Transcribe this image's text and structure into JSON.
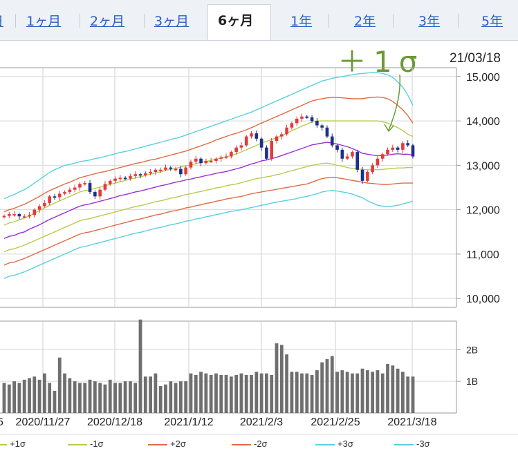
{
  "tabs": [
    {
      "label": "日",
      "active": false
    },
    {
      "label": "1ヶ月",
      "active": false
    },
    {
      "label": "2ヶ月",
      "active": false
    },
    {
      "label": "3ヶ月",
      "active": false
    },
    {
      "label": "6ヶ月",
      "active": true
    },
    {
      "label": "1年",
      "active": false
    },
    {
      "label": "2年",
      "active": false
    },
    {
      "label": "3年",
      "active": false
    },
    {
      "label": "5年",
      "active": false
    }
  ],
  "annotation": "＋1σ",
  "date_stamp": "21/03/18",
  "colors": {
    "up": "#e23b3b",
    "down": "#1d2f8a",
    "ma": "#9b2fd0",
    "sigma1": "#b6cc4e",
    "sigma2": "#e06b46",
    "sigma3": "#58cfe0",
    "volume": "#6f6f6f",
    "annotation": "#6a9a32"
  },
  "legend": [
    {
      "label": "+1σ",
      "color": "#b6cc4e"
    },
    {
      "label": "-1σ",
      "color": "#b6cc4e"
    },
    {
      "label": "+2σ",
      "color": "#e06b46"
    },
    {
      "label": "-2σ",
      "color": "#e06b46"
    },
    {
      "label": "+3σ",
      "color": "#58cfe0"
    },
    {
      "label": "-3σ",
      "color": "#58cfe0"
    }
  ],
  "chart_data": [
    {
      "type": "candlestick",
      "title": "",
      "y_ticks": [
        "15,000",
        "14,000",
        "13,000",
        "12,000",
        "11,000",
        "10,000"
      ],
      "ylim": [
        9800,
        15200
      ],
      "x_ticks": [
        "2020/11/27",
        "2020/12/18",
        "2021/1/12",
        "2021/2/3",
        "2021/2/25",
        "2021/3/18"
      ],
      "close": [
        11860,
        11900,
        11900,
        11850,
        11850,
        11880,
        12000,
        12080,
        12150,
        12300,
        12280,
        12360,
        12400,
        12450,
        12500,
        12580,
        12600,
        12400,
        12300,
        12450,
        12580,
        12650,
        12700,
        12720,
        12700,
        12760,
        12800,
        12780,
        12820,
        12850,
        12900,
        12900,
        12950,
        12920,
        12920,
        12800,
        12950,
        13080,
        13150,
        13050,
        13100,
        13100,
        13150,
        13180,
        13200,
        13300,
        13400,
        13450,
        13650,
        13720,
        13600,
        13400,
        13150,
        13550,
        13650,
        13700,
        13850,
        13950,
        14050,
        14100,
        14080,
        14000,
        13900,
        13850,
        13650,
        13450,
        13350,
        13150,
        13200,
        13300,
        12900,
        12650,
        12850,
        13000,
        13150,
        13250,
        13350,
        13400,
        13350,
        13500,
        13450,
        13200
      ],
      "sigma_bands": {
        "ma": [
          11350,
          11400,
          11420,
          11470,
          11500,
          11560,
          11610,
          11660,
          11720,
          11780,
          11830,
          11880,
          11930,
          11980,
          12030,
          12080,
          12110,
          12130,
          12160,
          12190,
          12220,
          12250,
          12280,
          12320,
          12340,
          12370,
          12400,
          12420,
          12450,
          12480,
          12510,
          12540,
          12560,
          12590,
          12620,
          12640,
          12670,
          12690,
          12720,
          12740,
          12770,
          12790,
          12820,
          12840,
          12860,
          12890,
          12920,
          12950,
          12990,
          13030,
          13060,
          13100,
          13120,
          13150,
          13180,
          13220,
          13260,
          13300,
          13340,
          13380,
          13420,
          13460,
          13480,
          13500,
          13520,
          13500,
          13480,
          13450,
          13420,
          13380,
          13330,
          13270,
          13250,
          13230,
          13220,
          13220,
          13230,
          13250,
          13260,
          13250,
          13250,
          13230
        ],
        "plus1": [
          11650,
          11700,
          11730,
          11770,
          11810,
          11860,
          11920,
          11980,
          12040,
          12100,
          12150,
          12200,
          12250,
          12300,
          12350,
          12400,
          12430,
          12450,
          12480,
          12510,
          12540,
          12570,
          12600,
          12630,
          12660,
          12690,
          12720,
          12740,
          12770,
          12800,
          12830,
          12850,
          12880,
          12910,
          12930,
          12960,
          12990,
          13010,
          13040,
          13060,
          13090,
          13110,
          13140,
          13160,
          13190,
          13220,
          13260,
          13300,
          13350,
          13400,
          13450,
          13500,
          13540,
          13580,
          13620,
          13670,
          13720,
          13780,
          13830,
          13880,
          13930,
          13980,
          14000,
          14000,
          14000,
          14000,
          14000,
          14000,
          14000,
          14000,
          14000,
          14000,
          14000,
          14000,
          14000,
          13980,
          13950,
          13900,
          13850,
          13780,
          13700,
          13650
        ],
        "minus1": [
          11050,
          11100,
          11120,
          11160,
          11200,
          11250,
          11300,
          11350,
          11400,
          11450,
          11500,
          11550,
          11600,
          11650,
          11700,
          11750,
          11780,
          11800,
          11830,
          11860,
          11890,
          11920,
          11950,
          11980,
          12010,
          12040,
          12070,
          12090,
          12120,
          12150,
          12180,
          12200,
          12230,
          12260,
          12280,
          12310,
          12340,
          12360,
          12390,
          12410,
          12440,
          12460,
          12490,
          12510,
          12540,
          12560,
          12580,
          12610,
          12640,
          12670,
          12700,
          12720,
          12740,
          12760,
          12790,
          12810,
          12850,
          12880,
          12910,
          12940,
          12970,
          13000,
          13020,
          13040,
          13050,
          13030,
          13000,
          12980,
          12950,
          12930,
          12920,
          12910,
          12900,
          12900,
          12900,
          12910,
          12920,
          12930,
          12940,
          12940,
          12950,
          12950
        ],
        "plus2": [
          11950,
          12000,
          12030,
          12080,
          12120,
          12180,
          12240,
          12300,
          12370,
          12430,
          12480,
          12530,
          12580,
          12620,
          12670,
          12720,
          12750,
          12780,
          12810,
          12840,
          12860,
          12890,
          12920,
          12950,
          12980,
          13010,
          13040,
          13060,
          13090,
          13120,
          13140,
          13170,
          13200,
          13230,
          13260,
          13290,
          13320,
          13360,
          13400,
          13440,
          13480,
          13520,
          13570,
          13610,
          13650,
          13690,
          13720,
          13760,
          13800,
          13850,
          13900,
          13950,
          14000,
          14050,
          14100,
          14150,
          14200,
          14250,
          14300,
          14350,
          14400,
          14450,
          14480,
          14500,
          14520,
          14530,
          14530,
          14520,
          14510,
          14500,
          14500,
          14500,
          14520,
          14530,
          14540,
          14530,
          14500,
          14440,
          14350,
          14250,
          14120,
          13950
        ],
        "minus2": [
          10750,
          10800,
          10820,
          10860,
          10900,
          10950,
          11000,
          11050,
          11100,
          11150,
          11200,
          11250,
          11300,
          11350,
          11400,
          11450,
          11480,
          11500,
          11530,
          11560,
          11590,
          11620,
          11650,
          11680,
          11710,
          11740,
          11770,
          11790,
          11820,
          11850,
          11880,
          11900,
          11930,
          11960,
          11980,
          12010,
          12040,
          12060,
          12090,
          12110,
          12140,
          12160,
          12190,
          12210,
          12240,
          12260,
          12280,
          12300,
          12330,
          12360,
          12380,
          12400,
          12420,
          12440,
          12460,
          12480,
          12500,
          12520,
          12540,
          12560,
          12580,
          12620,
          12660,
          12700,
          12720,
          12730,
          12720,
          12700,
          12680,
          12660,
          12640,
          12620,
          12600,
          12590,
          12580,
          12570,
          12570,
          12580,
          12590,
          12600,
          12600,
          12600
        ],
        "plus3": [
          12250,
          12300,
          12340,
          12400,
          12450,
          12520,
          12600,
          12680,
          12760,
          12840,
          12900,
          12950,
          13000,
          13020,
          13050,
          13080,
          13100,
          13120,
          13150,
          13170,
          13200,
          13230,
          13260,
          13290,
          13310,
          13340,
          13370,
          13400,
          13430,
          13460,
          13490,
          13520,
          13550,
          13580,
          13610,
          13640,
          13680,
          13720,
          13760,
          13800,
          13840,
          13880,
          13920,
          13960,
          14000,
          14040,
          14080,
          14120,
          14160,
          14200,
          14250,
          14300,
          14350,
          14400,
          14450,
          14500,
          14550,
          14600,
          14650,
          14700,
          14750,
          14800,
          14850,
          14900,
          14930,
          14960,
          14980,
          15000,
          15020,
          15040,
          15060,
          15070,
          15080,
          15090,
          15090,
          15070,
          15040,
          14980,
          14880,
          14760,
          14580,
          14350
        ],
        "minus3": [
          10450,
          10500,
          10520,
          10560,
          10600,
          10650,
          10700,
          10750,
          10800,
          10850,
          10900,
          10950,
          11000,
          11050,
          11100,
          11150,
          11170,
          11200,
          11230,
          11260,
          11290,
          11320,
          11350,
          11380,
          11410,
          11440,
          11470,
          11490,
          11520,
          11550,
          11580,
          11600,
          11630,
          11660,
          11680,
          11710,
          11740,
          11760,
          11790,
          11810,
          11840,
          11860,
          11890,
          11910,
          11940,
          11960,
          11980,
          12000,
          12020,
          12050,
          12070,
          12100,
          12120,
          12150,
          12170,
          12190,
          12210,
          12230,
          12250,
          12280,
          12300,
          12330,
          12360,
          12400,
          12420,
          12430,
          12420,
          12400,
          12380,
          12350,
          12310,
          12270,
          12200,
          12150,
          12100,
          12080,
          12070,
          12080,
          12100,
          12130,
          12160,
          12190
        ]
      }
    },
    {
      "type": "bar",
      "title": "",
      "y_ticks": [
        "2B",
        "1B"
      ],
      "ylim": [
        0,
        2.9
      ],
      "unit": "B",
      "values": [
        0.95,
        0.9,
        1.0,
        0.95,
        1.05,
        1.1,
        1.15,
        1.05,
        1.25,
        0.95,
        0.7,
        1.75,
        1.25,
        1.1,
        1.0,
        0.95,
        0.95,
        1.05,
        1.0,
        0.95,
        0.9,
        1.05,
        0.95,
        0.95,
        1.0,
        1.0,
        0.95,
        2.95,
        1.15,
        1.15,
        1.25,
        0.85,
        0.9,
        1.0,
        0.95,
        1.0,
        1.0,
        1.25,
        1.2,
        1.3,
        1.25,
        1.2,
        1.25,
        1.2,
        1.2,
        1.15,
        1.2,
        1.25,
        1.2,
        1.2,
        1.3,
        1.25,
        1.25,
        1.2,
        2.2,
        2.15,
        1.85,
        1.3,
        1.3,
        1.25,
        1.25,
        1.2,
        1.35,
        1.6,
        1.7,
        1.8,
        1.3,
        1.35,
        1.3,
        1.25,
        1.25,
        1.4,
        1.35,
        1.3,
        1.35,
        1.25,
        1.55,
        1.5,
        1.4,
        1.3,
        1.15,
        1.15
      ]
    }
  ]
}
